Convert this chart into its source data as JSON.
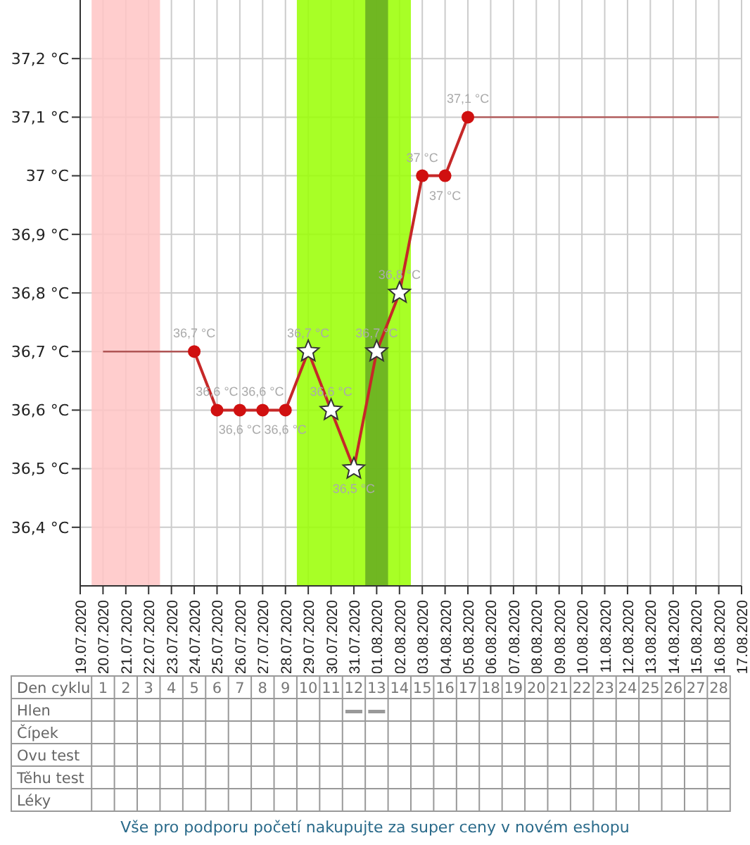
{
  "chart_data": {
    "type": "line",
    "x2label": "Den cyklu",
    "annotations": [
      "Hlen",
      "Čípek",
      "Ovu test",
      "Těhu test",
      "Léky",
      "Vše pro podporu početí nakupujte za super ceny v novém eshopu"
    ],
    "xlim": [
      "2020-07-19",
      "2020-08-17"
    ],
    "xticks": [
      {
        "value": "2020-07-19",
        "label": "19.07.2020"
      },
      {
        "value": "2020-07-20",
        "label": "20.07.2020"
      },
      {
        "value": "2020-07-21",
        "label": "21.07.2020"
      },
      {
        "value": "2020-07-22",
        "label": "22.07.2020"
      },
      {
        "value": "2020-07-23",
        "label": "23.07.2020"
      },
      {
        "value": "2020-07-24",
        "label": "24.07.2020"
      },
      {
        "value": "2020-07-25",
        "label": "25.07.2020"
      },
      {
        "value": "2020-07-26",
        "label": "26.07.2020"
      },
      {
        "value": "2020-07-27",
        "label": "27.07.2020"
      },
      {
        "value": "2020-07-28",
        "label": "28.07.2020"
      },
      {
        "value": "2020-07-29",
        "label": "29.07.2020"
      },
      {
        "value": "2020-07-30",
        "label": "30.07.2020"
      },
      {
        "value": "2020-07-31",
        "label": "31.07.2020"
      },
      {
        "value": "2020-08-01",
        "label": "01.08.2020"
      },
      {
        "value": "2020-08-02",
        "label": "02.08.2020"
      },
      {
        "value": "2020-08-03",
        "label": "03.08.2020"
      },
      {
        "value": "2020-08-04",
        "label": "04.08.2020"
      },
      {
        "value": "2020-08-05",
        "label": "05.08.2020"
      },
      {
        "value": "2020-08-06",
        "label": "06.08.2020"
      },
      {
        "value": "2020-08-07",
        "label": "07.08.2020"
      },
      {
        "value": "2020-08-08",
        "label": "08.08.2020"
      },
      {
        "value": "2020-08-09",
        "label": "09.08.2020"
      },
      {
        "value": "2020-08-10",
        "label": "10.08.2020"
      },
      {
        "value": "2020-08-11",
        "label": "11.08.2020"
      },
      {
        "value": "2020-08-12",
        "label": "12.08.2020"
      },
      {
        "value": "2020-08-13",
        "label": "13.08.2020"
      },
      {
        "value": "2020-08-14",
        "label": "14.08.2020"
      },
      {
        "value": "2020-08-15",
        "label": "15.08.2020"
      },
      {
        "value": "2020-08-16",
        "label": "16.08.2020"
      },
      {
        "value": "2020-08-17",
        "label": "17.08.2020"
      }
    ],
    "ylim": [
      36.3,
      37.3
    ],
    "yticks": [
      {
        "value": 36.4,
        "label": "36,4 °C"
      },
      {
        "value": 36.5,
        "label": "36,5 °C"
      },
      {
        "value": 36.6,
        "label": "36,6 °C"
      },
      {
        "value": 36.7,
        "label": "36,7 °C"
      },
      {
        "value": 36.8,
        "label": "36,8 °C"
      },
      {
        "value": 36.9,
        "label": "36,9 °C"
      },
      {
        "value": 37.0,
        "label": "37 °C"
      },
      {
        "value": 37.1,
        "label": "37,1 °C"
      },
      {
        "value": 37.2,
        "label": "37,2 °C"
      }
    ],
    "x2lim": [
      0,
      29
    ],
    "x2ticks": [
      1,
      2,
      3,
      4,
      5,
      6,
      7,
      8,
      9,
      10,
      11,
      12,
      13,
      14,
      15,
      16,
      17,
      18,
      19,
      20,
      21,
      22,
      23,
      24,
      25,
      26,
      27,
      28
    ],
    "grid": true,
    "bands": [
      {
        "axis": "x",
        "from": "2020-07-19T12:00",
        "to": "2020-07-22T12:00",
        "color": "#ffc4c4"
      },
      {
        "axis": "x",
        "from": "2020-07-28T12:00",
        "to": "2020-08-02T12:00",
        "color": "#99ff00"
      },
      {
        "axis": "x",
        "from": "2020-07-31T12:00",
        "to": "2020-08-01T12:00",
        "color": "#66aa22"
      }
    ],
    "series": [
      {
        "type": "line",
        "color": "#b05555",
        "marker": "none",
        "x": [
          "2020-07-20",
          "2020-07-24"
        ],
        "values": [
          36.7,
          36.7
        ]
      },
      {
        "type": "line",
        "color": "#b05555",
        "marker": "none",
        "x": [
          "2020-08-05",
          "2020-08-16"
        ],
        "values": [
          37.1,
          37.1
        ]
      },
      {
        "type": "line",
        "color": "#c62828",
        "marker": "none",
        "x": [
          "2020-07-24",
          "2020-07-25",
          "2020-07-26",
          "2020-07-27",
          "2020-07-28",
          "2020-07-29",
          "2020-07-30",
          "2020-07-31",
          "2020-08-01",
          "2020-08-02",
          "2020-08-03",
          "2020-08-04",
          "2020-08-05"
        ],
        "values": [
          36.7,
          36.6,
          36.6,
          36.6,
          36.6,
          36.7,
          36.6,
          36.5,
          36.7,
          36.8,
          37.0,
          37.0,
          37.1
        ],
        "value_labels": [
          "36,7 °C",
          "36,6 °C",
          "36,6 °C",
          "36,6 °C",
          "36,6 °C",
          "36,7 °C",
          "36,6 °C",
          "36,5 °C",
          "36,7 °C",
          "36,8 °C",
          "37 °C",
          "37 °C",
          "37,1 °C"
        ]
      },
      {
        "type": "scatter",
        "color": "#d01010",
        "marker": "circle",
        "x": [
          "2020-07-24",
          "2020-07-25",
          "2020-07-26",
          "2020-07-27",
          "2020-07-28",
          "2020-08-03",
          "2020-08-04",
          "2020-08-05"
        ],
        "values": [
          36.7,
          36.6,
          36.6,
          36.6,
          36.6,
          37.0,
          37.0,
          37.1
        ]
      },
      {
        "type": "scatter",
        "color": "#ffffff",
        "marker": "star",
        "x": [
          "2020-07-29",
          "2020-07-30",
          "2020-07-31",
          "2020-08-01",
          "2020-08-02"
        ],
        "values": [
          36.7,
          36.6,
          36.5,
          36.7,
          36.8
        ]
      }
    ]
  }
}
